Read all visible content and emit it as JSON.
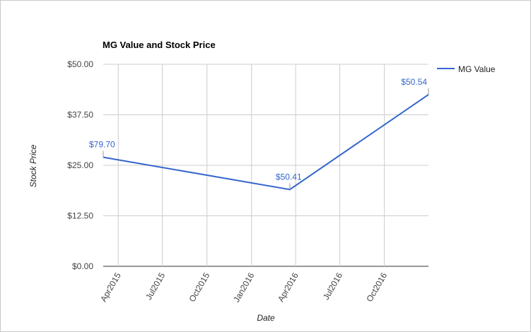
{
  "chart_data": {
    "type": "line",
    "title": "MG Value and Stock Price",
    "xlabel": "Date",
    "ylabel": "Stock Price",
    "ylim": [
      0,
      50
    ],
    "yticks": [
      "$0.00",
      "$12.50",
      "$25.00",
      "$37.50",
      "$50.00"
    ],
    "ytick_values": [
      0,
      12.5,
      25,
      37.5,
      50
    ],
    "xticks": [
      "Apr2015",
      "Jul2015",
      "Oct2015",
      "Jan2016",
      "Apr2016",
      "Jul2016",
      "Oct2016"
    ],
    "xtick_dates": [
      "2015-04-01",
      "2015-07-01",
      "2015-10-01",
      "2016-01-01",
      "2016-04-01",
      "2016-07-01",
      "2016-10-01"
    ],
    "xlim": [
      "2015-03-01",
      "2016-12-31"
    ],
    "grid": true,
    "legend_position": "right",
    "series": [
      {
        "name": "MG Value",
        "color": "#3366cc",
        "x": [
          "2015-03-01",
          "2016-03-20",
          "2016-12-31"
        ],
        "y": [
          27,
          19,
          42.5
        ],
        "labels": [
          "$79.70",
          "$50.41",
          "$50.54"
        ]
      }
    ]
  }
}
